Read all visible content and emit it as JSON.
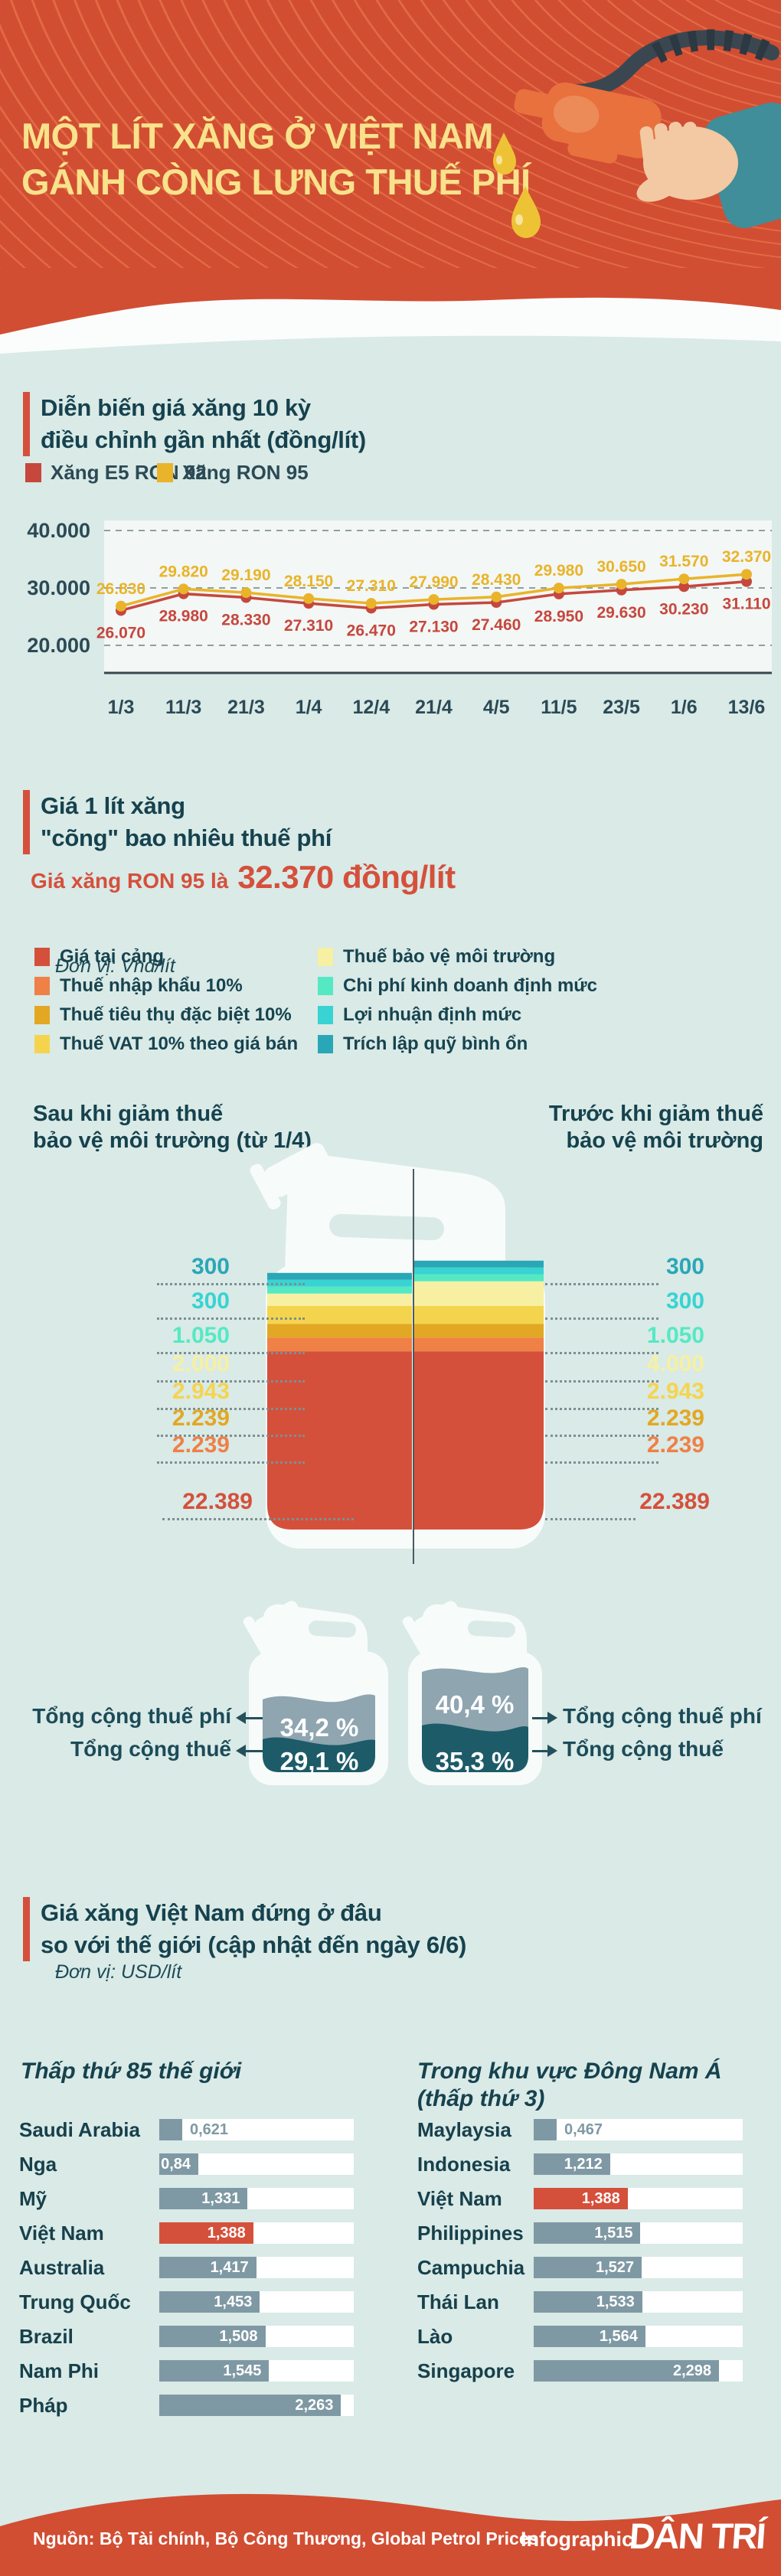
{
  "palette": {
    "header_bg": "#d14e33",
    "header_title": "#f8e28b",
    "page_bg": "#d9eae7",
    "accent_red": "#d5503b",
    "heading_text": "#16424e",
    "bar_gray": "#7f99a4",
    "can_total_fee_gray": "#8fa5b0",
    "can_total_tax_teal": "#1d5b68"
  },
  "header": {
    "title_line1": "MỘT LÍT XĂNG Ở VIỆT NAM",
    "title_line2": "GÁNH CÒNG LƯNG THUẾ PHÍ"
  },
  "sections": {
    "price_history": {
      "title_line1": "Diễn biến giá xăng 10 kỳ",
      "title_line2": "điều chỉnh gần nhất (đồng/lít)"
    },
    "tax_breakdown": {
      "title_line1": "Giá 1 lít xăng",
      "title_line2": "\"cõng\" bao nhiêu thuế phí",
      "subtitle_prefix": "Giá xăng RON 95 là",
      "subtitle_value": "32.370 đồng/lít",
      "unit": "Đơn vị: Vnđ/lít",
      "col_after_line1": "Sau khi giảm thuế",
      "col_after_line2": "bảo vệ môi trường (từ 1/4)",
      "col_before_line1": "Trước khi giảm thuế",
      "col_before_line2": "bảo vệ môi trường",
      "label_taxes_fees": "Tổng cộng thuế phí",
      "label_taxes": "Tổng cộng thuế"
    },
    "world_compare": {
      "title_line1": "Giá xăng Việt Nam đứng ở đâu",
      "title_line2": "so với thế giới (cập nhật đến ngày 6/6)",
      "unit": "Đơn vị: USD/lít",
      "heading_world": "Thấp thứ 85 thế giới",
      "heading_sea_line1": "Trong khu vực Đông Nam Á",
      "heading_sea_line2": "(thấp thứ 3)"
    }
  },
  "footer": {
    "source": "Nguồn: Bộ Tài chính, Bộ Công Thương, Global Petrol Prices",
    "label": "Infographic",
    "brand": "DÂN TRÍ"
  },
  "chart_data": [
    {
      "type": "line",
      "title": "Diễn biến giá xăng 10 kỳ điều chỉnh gần nhất (đồng/lít)",
      "categories": [
        "1/3",
        "11/3",
        "21/3",
        "1/4",
        "12/4",
        "21/4",
        "4/5",
        "11/5",
        "23/5",
        "1/6",
        "13/6"
      ],
      "series": [
        {
          "name": "Xăng E5 RON 92",
          "color": "#c6473e",
          "values": [
            26070,
            28980,
            28330,
            27310,
            26470,
            27130,
            27460,
            28950,
            29630,
            30230,
            31110
          ],
          "label_offset": 36
        },
        {
          "name": "Xăng RON 95",
          "color": "#e9b42a",
          "values": [
            26830,
            29820,
            29190,
            28150,
            27310,
            27990,
            28430,
            29980,
            30650,
            31570,
            32370
          ],
          "label_offset": -16
        }
      ],
      "yticks": [
        40000,
        30000,
        20000
      ],
      "ylim": [
        15200,
        41500
      ],
      "grid": "dashed",
      "legend_position": "top"
    },
    {
      "type": "bar",
      "stacked": true,
      "title": "Giá 1 lít xăng \"cõng\" bao nhiêu thuế phí",
      "unit": "Vnđ/lít",
      "categories": [
        "Sau khi giảm thuế bảo vệ môi trường (từ 1/4)",
        "Trước khi giảm thuế bảo vệ môi trường"
      ],
      "series": [
        {
          "name": "Trích lập quỹ bình ổn",
          "color": "#2aa7b6",
          "values": [
            300,
            300
          ]
        },
        {
          "name": "Lợi nhuận định mức",
          "color": "#38d3d2",
          "values": [
            300,
            300
          ]
        },
        {
          "name": "Chi phí kinh doanh định mức",
          "color": "#55e9c3",
          "values": [
            1050,
            1050
          ]
        },
        {
          "name": "Thuế bảo vệ môi trường",
          "color": "#f7f0a2",
          "values": [
            2000,
            4000
          ]
        },
        {
          "name": "Thuế VAT 10% theo giá bán",
          "color": "#f5d44d",
          "values": [
            2943,
            2943
          ]
        },
        {
          "name": "Thuế tiêu thụ đặc biệt 10%",
          "color": "#e2a823",
          "values": [
            2239,
            2239
          ]
        },
        {
          "name": "Thuế nhập khẩu 10%",
          "color": "#ef8046",
          "values": [
            2239,
            2239
          ]
        },
        {
          "name": "Giá tại cảng",
          "color": "#d5503b",
          "values": [
            22389,
            22389
          ]
        }
      ],
      "annotations": {
        "after": {
          "taxes_fees_pct": "34,2 %",
          "taxes_pct": "29,1 %"
        },
        "before": {
          "taxes_fees_pct": "40,4 %",
          "taxes_pct": "35,3 %"
        }
      }
    },
    {
      "type": "bar",
      "title": "Thấp thứ 85 thế giới",
      "unit": "USD/lít",
      "categories": [
        "Saudi Arabia",
        "Nga",
        "Mỹ",
        "Việt Nam",
        "Australia",
        "Trung Quốc",
        "Brazil",
        "Nam Phi",
        "Pháp"
      ],
      "values": [
        0.621,
        0.84,
        1.331,
        1.388,
        1.417,
        1.453,
        1.508,
        1.545,
        2.263
      ],
      "highlight_category": "Việt Nam"
    },
    {
      "type": "bar",
      "title": "Trong khu vực Đông Nam Á (thấp thứ 3)",
      "unit": "USD/lít",
      "categories": [
        "Maylaysia",
        "Indonesia",
        "Việt Nam",
        "Philippines",
        "Campuchia",
        "Thái Lan",
        "Lào",
        "Singapore"
      ],
      "values": [
        0.467,
        1.212,
        1.388,
        1.515,
        1.527,
        1.533,
        1.564,
        2.298
      ],
      "highlight_category": "Việt Nam"
    }
  ]
}
